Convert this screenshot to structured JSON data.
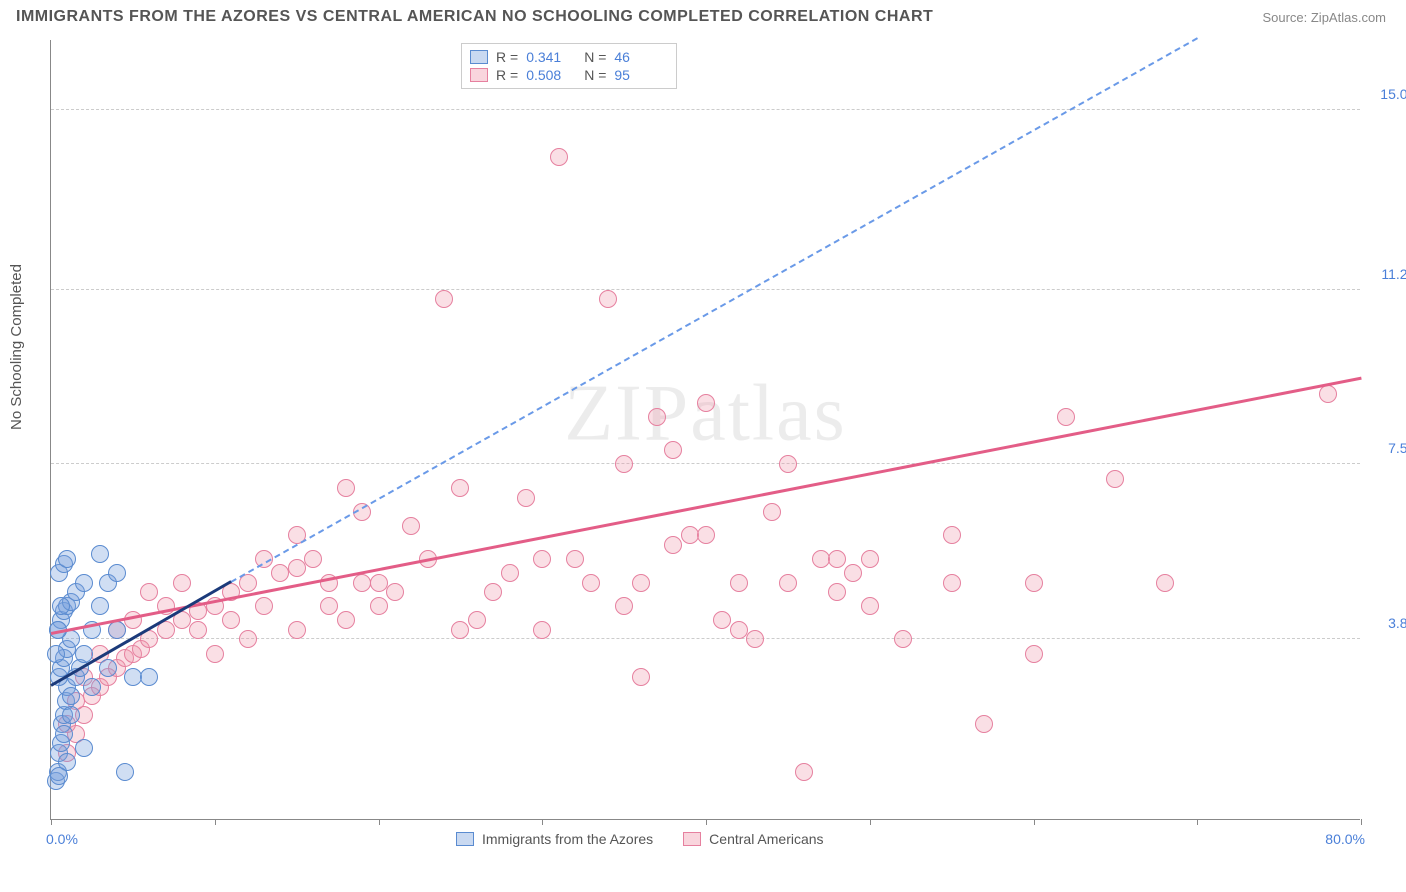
{
  "header": {
    "title": "IMMIGRANTS FROM THE AZORES VS CENTRAL AMERICAN NO SCHOOLING COMPLETED CORRELATION CHART",
    "source": "Source: ZipAtlas.com"
  },
  "chart": {
    "type": "scatter",
    "ylabel": "No Schooling Completed",
    "xlim": [
      0,
      80
    ],
    "ylim": [
      0,
      16.5
    ],
    "xtick_positions": [
      0,
      10,
      20,
      30,
      40,
      50,
      60,
      70,
      80
    ],
    "xlabel_min": "0.0%",
    "xlabel_max": "80.0%",
    "ygrid": [
      {
        "value": 3.8,
        "label": "3.8%"
      },
      {
        "value": 7.5,
        "label": "7.5%"
      },
      {
        "value": 11.2,
        "label": "11.2%"
      },
      {
        "value": 15.0,
        "label": "15.0%"
      }
    ],
    "background_color": "#ffffff",
    "grid_color": "#cccccc",
    "axis_color": "#888888",
    "tick_label_color": "#4a7fd8",
    "marker_radius": 9,
    "series": {
      "blue": {
        "label": "Immigrants from the Azores",
        "fill_color": "rgba(120,160,220,0.35)",
        "stroke_color": "#5a8bd0",
        "R": "0.341",
        "N": "46",
        "trend_solid": {
          "x1": 0,
          "y1": 2.8,
          "x2": 11,
          "y2": 5.0,
          "color": "#1b3a7a"
        },
        "trend_dashed": {
          "x1": 11,
          "y1": 5.0,
          "x2": 70,
          "y2": 16.5,
          "color": "#6a9ae8"
        },
        "points": [
          [
            0.3,
            0.8
          ],
          [
            0.4,
            1.0
          ],
          [
            0.5,
            1.4
          ],
          [
            0.6,
            1.6
          ],
          [
            0.7,
            2.0
          ],
          [
            0.8,
            2.2
          ],
          [
            0.9,
            2.5
          ],
          [
            1.0,
            2.8
          ],
          [
            0.5,
            3.0
          ],
          [
            0.6,
            3.2
          ],
          [
            0.8,
            3.4
          ],
          [
            1.0,
            3.6
          ],
          [
            1.2,
            3.8
          ],
          [
            0.4,
            4.0
          ],
          [
            0.6,
            4.2
          ],
          [
            0.8,
            4.4
          ],
          [
            1.0,
            4.5
          ],
          [
            1.2,
            4.6
          ],
          [
            1.5,
            4.8
          ],
          [
            2.0,
            5.0
          ],
          [
            0.5,
            5.2
          ],
          [
            0.8,
            5.4
          ],
          [
            1.0,
            5.5
          ],
          [
            1.2,
            2.6
          ],
          [
            1.5,
            3.0
          ],
          [
            1.8,
            3.2
          ],
          [
            2.0,
            3.5
          ],
          [
            2.5,
            4.0
          ],
          [
            3.0,
            4.5
          ],
          [
            3.5,
            5.0
          ],
          [
            4.0,
            5.2
          ],
          [
            0.3,
            3.5
          ],
          [
            0.4,
            4.0
          ],
          [
            0.6,
            4.5
          ],
          [
            3.0,
            5.6
          ],
          [
            4.0,
            4.0
          ],
          [
            5.0,
            3.0
          ],
          [
            2.0,
            1.5
          ],
          [
            1.0,
            1.2
          ],
          [
            6.0,
            3.0
          ],
          [
            0.5,
            0.9
          ],
          [
            0.8,
            1.8
          ],
          [
            1.2,
            2.2
          ],
          [
            2.5,
            2.8
          ],
          [
            3.5,
            3.2
          ],
          [
            4.5,
            1.0
          ]
        ]
      },
      "pink": {
        "label": "Central Americans",
        "fill_color": "rgba(240,150,170,0.3)",
        "stroke_color": "#e6809f",
        "R": "0.508",
        "N": "95",
        "trend_solid": {
          "x1": 0,
          "y1": 3.9,
          "x2": 80,
          "y2": 9.3,
          "color": "#e35d87"
        },
        "points": [
          [
            1.0,
            1.4
          ],
          [
            1.5,
            1.8
          ],
          [
            2.0,
            2.2
          ],
          [
            2.5,
            2.6
          ],
          [
            3.0,
            2.8
          ],
          [
            3.5,
            3.0
          ],
          [
            4.0,
            3.2
          ],
          [
            4.5,
            3.4
          ],
          [
            5.0,
            3.5
          ],
          [
            5.5,
            3.6
          ],
          [
            6.0,
            3.8
          ],
          [
            7.0,
            4.0
          ],
          [
            8.0,
            4.2
          ],
          [
            9.0,
            4.4
          ],
          [
            10.0,
            4.5
          ],
          [
            11.0,
            4.8
          ],
          [
            12.0,
            5.0
          ],
          [
            13.0,
            4.5
          ],
          [
            14.0,
            5.2
          ],
          [
            15.0,
            5.3
          ],
          [
            16.0,
            5.5
          ],
          [
            17.0,
            5.0
          ],
          [
            18.0,
            7.0
          ],
          [
            19.0,
            6.5
          ],
          [
            20.0,
            5.0
          ],
          [
            21.0,
            4.8
          ],
          [
            22.0,
            6.2
          ],
          [
            23.0,
            5.5
          ],
          [
            24.0,
            11.0
          ],
          [
            25.0,
            7.0
          ],
          [
            26.0,
            4.2
          ],
          [
            27.0,
            4.8
          ],
          [
            28.0,
            5.2
          ],
          [
            29.0,
            6.8
          ],
          [
            30.0,
            4.0
          ],
          [
            31.0,
            14.0
          ],
          [
            32.0,
            5.5
          ],
          [
            33.0,
            5.0
          ],
          [
            34.0,
            11.0
          ],
          [
            35.0,
            4.5
          ],
          [
            36.0,
            3.0
          ],
          [
            37.0,
            8.5
          ],
          [
            38.0,
            7.8
          ],
          [
            39.0,
            6.0
          ],
          [
            40.0,
            8.8
          ],
          [
            41.0,
            4.2
          ],
          [
            42.0,
            5.0
          ],
          [
            43.0,
            3.8
          ],
          [
            44.0,
            6.5
          ],
          [
            45.0,
            7.5
          ],
          [
            46.0,
            1.0
          ],
          [
            47.0,
            5.5
          ],
          [
            48.0,
            4.8
          ],
          [
            49.0,
            5.2
          ],
          [
            50.0,
            5.5
          ],
          [
            55.0,
            5.0
          ],
          [
            52.0,
            3.8
          ],
          [
            57.0,
            2.0
          ],
          [
            60.0,
            3.5
          ],
          [
            62.0,
            8.5
          ],
          [
            65.0,
            7.2
          ],
          [
            68.0,
            5.0
          ],
          [
            78.0,
            9.0
          ],
          [
            10.0,
            3.5
          ],
          [
            12.0,
            3.8
          ],
          [
            15.0,
            4.0
          ],
          [
            18.0,
            4.2
          ],
          [
            20.0,
            4.5
          ],
          [
            6.0,
            4.8
          ],
          [
            8.0,
            5.0
          ],
          [
            35.0,
            7.5
          ],
          [
            38.0,
            5.8
          ],
          [
            1.0,
            2.0
          ],
          [
            1.5,
            2.5
          ],
          [
            2.0,
            3.0
          ],
          [
            3.0,
            3.5
          ],
          [
            4.0,
            4.0
          ],
          [
            5.0,
            4.2
          ],
          [
            7.0,
            4.5
          ],
          [
            9.0,
            4.0
          ],
          [
            11.0,
            4.2
          ],
          [
            13.0,
            5.5
          ],
          [
            15.0,
            6.0
          ],
          [
            17.0,
            4.5
          ],
          [
            19.0,
            5.0
          ],
          [
            25.0,
            4.0
          ],
          [
            30.0,
            5.5
          ],
          [
            40.0,
            6.0
          ],
          [
            45.0,
            5.0
          ],
          [
            50.0,
            4.5
          ],
          [
            55.0,
            6.0
          ],
          [
            60.0,
            5.0
          ],
          [
            48.0,
            5.5
          ],
          [
            42.0,
            4.0
          ],
          [
            36.0,
            5.0
          ]
        ]
      }
    },
    "legend_bottom": [
      {
        "swatch": "blue",
        "label": "Immigrants from the Azores"
      },
      {
        "swatch": "pink",
        "label": "Central Americans"
      }
    ],
    "watermark": "ZIPatlas"
  }
}
